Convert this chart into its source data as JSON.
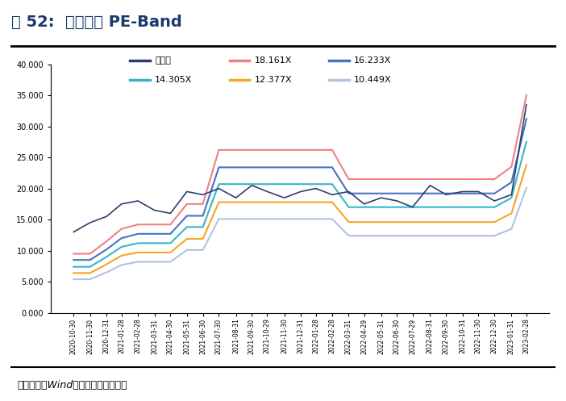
{
  "title": "图 52:  新奥股份 PE-Band",
  "source_text": "资料来源：Wind，信达证券研发中心",
  "legend_labels": [
    "收盘价",
    "18.161X",
    "16.233X",
    "14.305X",
    "12.377X",
    "10.449X"
  ],
  "line_colors": [
    "#2e3f6e",
    "#f08080",
    "#4472c4",
    "#3ab5c6",
    "#f5a623",
    "#b0c4de"
  ],
  "line_widths": [
    1.2,
    1.5,
    1.5,
    1.5,
    1.5,
    1.5
  ],
  "yticks": [
    0.0,
    5.0,
    10.0,
    15.0,
    20.0,
    25.0,
    30.0,
    35.0,
    40.0
  ],
  "ylim": [
    0,
    40
  ],
  "background_color": "#ffffff",
  "title_color": "#1a3a6b",
  "dates": [
    "2020-10-30",
    "2020-11-30",
    "2020-12-31",
    "2021-01-28",
    "2021-02-28",
    "2021-03-31",
    "2021-04-30",
    "2021-05-31",
    "2021-06-30",
    "2021-07-30",
    "2021-08-31",
    "2021-09-30",
    "2021-10-29",
    "2021-11-30",
    "2021-12-31",
    "2022-01-28",
    "2022-02-28",
    "2022-03-31",
    "2022-04-29",
    "2022-05-31",
    "2022-06-30",
    "2022-07-29",
    "2022-08-31",
    "2022-09-30",
    "2022-10-31",
    "2022-11-30",
    "2022-12-30",
    "2023-01-31",
    "2023-02-28"
  ],
  "pe_18161": [
    9.5,
    9.5,
    11.5,
    13.5,
    14.2,
    14.2,
    14.2,
    17.5,
    17.5,
    26.2,
    26.2,
    26.2,
    26.2,
    26.2,
    26.2,
    26.2,
    26.2,
    21.5,
    21.5,
    21.5,
    21.5,
    21.5,
    21.5,
    21.5,
    21.5,
    21.5,
    21.5,
    23.5,
    35.0
  ],
  "pe_16233": [
    8.5,
    8.5,
    10.2,
    12.0,
    12.7,
    12.7,
    12.7,
    15.6,
    15.6,
    23.4,
    23.4,
    23.4,
    23.4,
    23.4,
    23.4,
    23.4,
    23.4,
    19.2,
    19.2,
    19.2,
    19.2,
    19.2,
    19.2,
    19.2,
    19.2,
    19.2,
    19.2,
    21.0,
    31.2
  ],
  "pe_14305": [
    7.4,
    7.4,
    9.0,
    10.6,
    11.2,
    11.2,
    11.2,
    13.8,
    13.8,
    20.7,
    20.7,
    20.7,
    20.7,
    20.7,
    20.7,
    20.7,
    20.7,
    17.0,
    17.0,
    17.0,
    17.0,
    17.0,
    17.0,
    17.0,
    17.0,
    17.0,
    17.0,
    18.5,
    27.5
  ],
  "pe_12377": [
    6.4,
    6.4,
    7.8,
    9.2,
    9.7,
    9.7,
    9.7,
    11.9,
    11.9,
    17.8,
    17.8,
    17.8,
    17.8,
    17.8,
    17.8,
    17.8,
    17.8,
    14.6,
    14.6,
    14.6,
    14.6,
    14.6,
    14.6,
    14.6,
    14.6,
    14.6,
    14.6,
    16.0,
    23.8
  ],
  "pe_10449": [
    5.4,
    5.4,
    6.5,
    7.7,
    8.2,
    8.2,
    8.2,
    10.1,
    10.1,
    15.1,
    15.1,
    15.1,
    15.1,
    15.1,
    15.1,
    15.1,
    15.1,
    12.4,
    12.4,
    12.4,
    12.4,
    12.4,
    12.4,
    12.4,
    12.4,
    12.4,
    12.4,
    13.5,
    20.1
  ],
  "close": [
    13.0,
    14.5,
    15.5,
    17.5,
    18.0,
    16.5,
    16.0,
    19.5,
    19.0,
    20.0,
    18.5,
    20.5,
    19.5,
    18.5,
    19.5,
    20.0,
    19.0,
    19.5,
    17.5,
    18.5,
    18.0,
    17.0,
    20.5,
    19.0,
    19.5,
    19.5,
    18.0,
    19.0,
    33.5
  ]
}
